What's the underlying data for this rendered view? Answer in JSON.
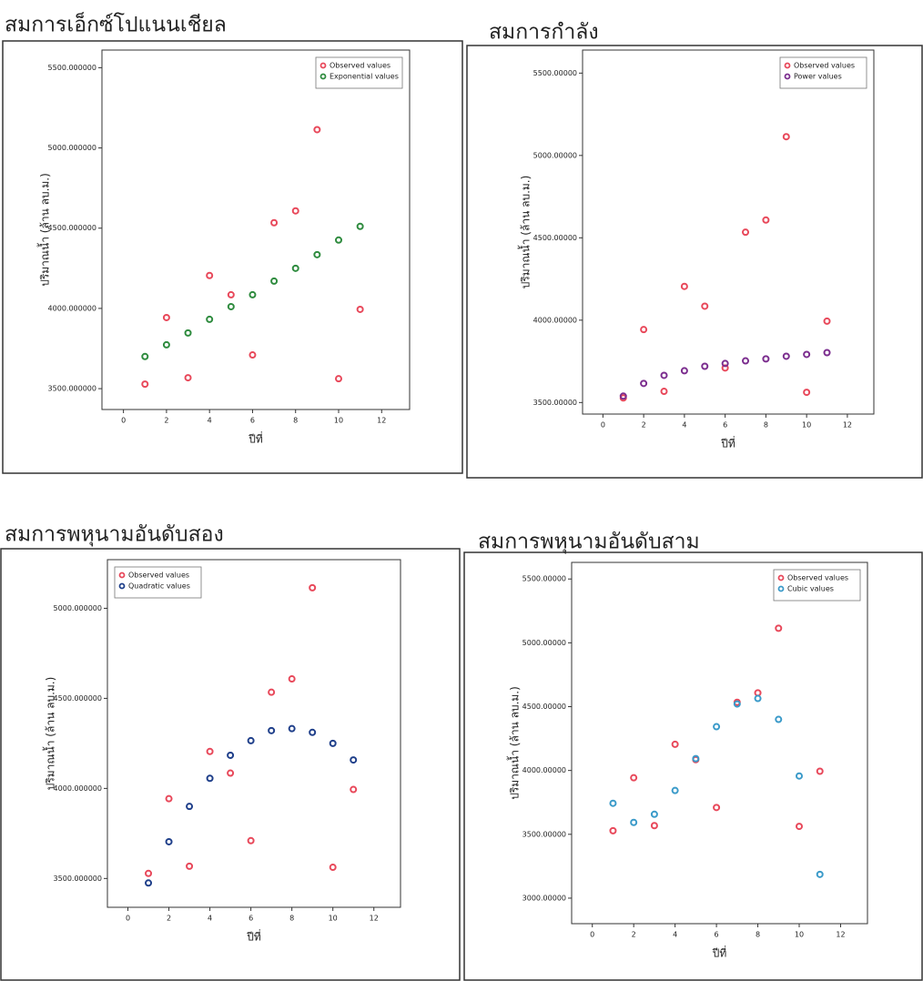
{
  "chart_data": [
    {
      "type": "scatter",
      "title": "สมการเอ็กซ์โปแนนเชียล",
      "x_label": "ปีที่",
      "y_label": "ปริมาณน้ำ (ล้าน ลบ.ม.)",
      "x": [
        1,
        2,
        3,
        4,
        5,
        6,
        7,
        8,
        9,
        10,
        11
      ],
      "series": [
        {
          "name": "Observed values",
          "color": "#e8485a",
          "values": [
            3528,
            3943,
            3568,
            4205,
            4085,
            3710,
            4534,
            4608,
            5114,
            3562,
            3994
          ]
        },
        {
          "name": "Exponential values",
          "color": "#2e8b3e",
          "values": [
            3700,
            3773,
            3847,
            3932,
            4011,
            4085,
            4170,
            4250,
            4335,
            4426,
            4511
          ]
        }
      ],
      "xlim": [
        -1,
        13.3
      ],
      "xticks": [
        0,
        2,
        4,
        6,
        8,
        10,
        12
      ],
      "ylim": [
        3370,
        5610
      ],
      "yticks": [
        {
          "value": 3500,
          "label": "3500.000000"
        },
        {
          "value": 4000,
          "label": "4000.000000"
        },
        {
          "value": 4500,
          "label": "4500.000000"
        },
        {
          "value": 5000,
          "label": "5000.000000"
        },
        {
          "value": 5500,
          "label": "5500.000000"
        }
      ],
      "legend": "upper right"
    },
    {
      "type": "scatter",
      "title": "สมการกำลัง",
      "x_label": "ปีที่",
      "y_label": "ปริมาณน้ำ (ล้าน ลบ.ม.)",
      "x": [
        1,
        2,
        3,
        4,
        5,
        6,
        7,
        8,
        9,
        10,
        11
      ],
      "series": [
        {
          "name": "Observed values",
          "color": "#e8485a",
          "values": [
            3528,
            3943,
            3568,
            4205,
            4085,
            3710,
            4534,
            4608,
            5114,
            3562,
            3994
          ]
        },
        {
          "name": "Power values",
          "color": "#7b2d8e",
          "values": [
            3539,
            3616,
            3665,
            3693,
            3720,
            3737,
            3753,
            3765,
            3781,
            3792,
            3803
          ]
        }
      ],
      "xlim": [
        -1,
        13.3
      ],
      "xticks": [
        0,
        2,
        4,
        6,
        8,
        10,
        12
      ],
      "ylim": [
        3430,
        5640
      ],
      "yticks": [
        {
          "value": 3500,
          "label": "3500.00000"
        },
        {
          "value": 4000,
          "label": "4000.00000"
        },
        {
          "value": 4500,
          "label": "4500.00000"
        },
        {
          "value": 5000,
          "label": "5000.00000"
        },
        {
          "value": 5500,
          "label": "5500.00000"
        }
      ],
      "legend": "upper right"
    },
    {
      "type": "scatter",
      "title": "สมการพหุนามอันดับสอง",
      "x_label": "ปีที่",
      "y_label": "ปริมาณน้ำ (ล้าน ลบ.ม.)",
      "x": [
        1,
        2,
        3,
        4,
        5,
        6,
        7,
        8,
        9,
        10,
        11
      ],
      "series": [
        {
          "name": "Observed values",
          "color": "#e8485a",
          "values": [
            3528,
            3943,
            3568,
            4205,
            4085,
            3710,
            4534,
            4608,
            5114,
            3562,
            3994
          ]
        },
        {
          "name": "Quadratic values",
          "color": "#1f3f8a",
          "values": [
            3475,
            3704,
            3900,
            4056,
            4184,
            4265,
            4321,
            4332,
            4311,
            4250,
            4158
          ]
        }
      ],
      "xlim": [
        -1,
        13.3
      ],
      "xticks": [
        0,
        2,
        4,
        6,
        8,
        10,
        12
      ],
      "ylim": [
        3340,
        5270
      ],
      "yticks": [
        {
          "value": 3500,
          "label": "3500.000000"
        },
        {
          "value": 4000,
          "label": "4000.000000"
        },
        {
          "value": 4500,
          "label": "4500.000000"
        },
        {
          "value": 5000,
          "label": "5000.000000"
        }
      ],
      "legend": "upper left"
    },
    {
      "type": "scatter",
      "title": "สมการพหุนามอันดับสาม",
      "x_label": "ปีที่",
      "y_label": "ปริมาณน้ำ (ล้าน ลบ.ม.)",
      "x": [
        1,
        2,
        3,
        4,
        5,
        6,
        7,
        8,
        9,
        10,
        11
      ],
      "series": [
        {
          "name": "Observed values",
          "color": "#e8485a",
          "values": [
            3528,
            3943,
            3568,
            4205,
            4085,
            3710,
            4534,
            4608,
            5114,
            3562,
            3994
          ]
        },
        {
          "name": "Cubic values",
          "color": "#3a9ac9",
          "values": [
            3743,
            3593,
            3657,
            3843,
            4093,
            4343,
            4521,
            4564,
            4400,
            3957,
            3186
          ]
        }
      ],
      "xlim": [
        -1,
        13.3
      ],
      "xticks": [
        0,
        2,
        4,
        6,
        8,
        10,
        12
      ],
      "ylim": [
        2800,
        5630
      ],
      "yticks": [
        {
          "value": 3000,
          "label": "3000.00000"
        },
        {
          "value": 3500,
          "label": "3500.00000"
        },
        {
          "value": 4000,
          "label": "4000.00000"
        },
        {
          "value": 4500,
          "label": "4500.00000"
        },
        {
          "value": 5000,
          "label": "5000.00000"
        },
        {
          "value": 5500,
          "label": "5500.00000"
        }
      ],
      "legend": "upper right"
    }
  ]
}
